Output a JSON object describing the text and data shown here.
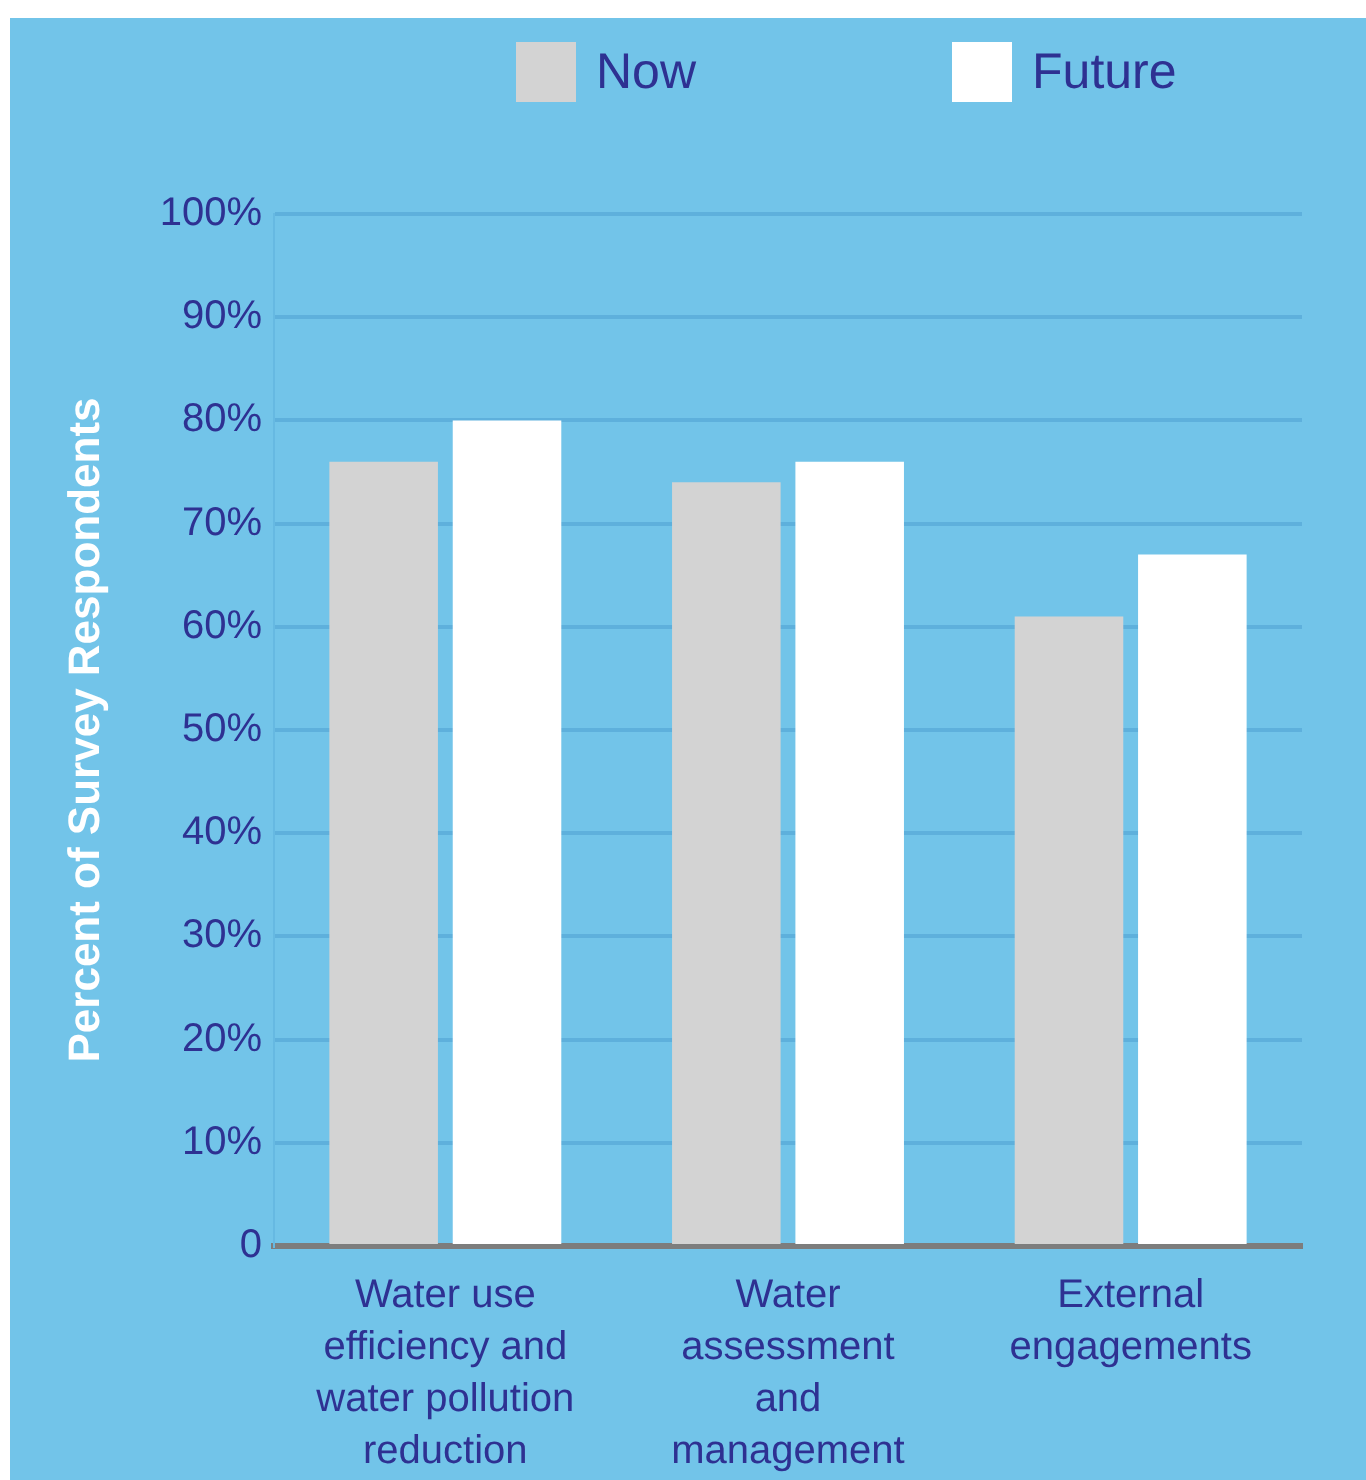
{
  "chart_data": {
    "type": "bar",
    "ylabel": "Percent of Survey Respondents",
    "categories": [
      "Water use\nefficiency and\nwater pollution\nreduction",
      "Water\nassessment\nand\nmanagement",
      "External\nengagements"
    ],
    "series": [
      {
        "name": "Now",
        "color": "#d3d3d3",
        "values": [
          76,
          74,
          61
        ]
      },
      {
        "name": "Future",
        "color": "#ffffff",
        "values": [
          80,
          76,
          67
        ]
      }
    ],
    "ylim": [
      0,
      100
    ],
    "yticks": [
      0,
      {
        "value": 10,
        "label": "10%"
      },
      {
        "value": 20,
        "label": "20%"
      },
      {
        "value": 30,
        "label": "30%"
      },
      {
        "value": 40,
        "label": "40%"
      },
      {
        "value": 50,
        "label": "50%"
      },
      {
        "value": 60,
        "label": "60%"
      },
      {
        "value": 70,
        "label": "70%"
      },
      {
        "value": 80,
        "label": "80%"
      },
      {
        "value": 90,
        "label": "90%"
      },
      {
        "value": 100,
        "label": "100%"
      }
    ],
    "grid": "y",
    "legend": "top"
  }
}
